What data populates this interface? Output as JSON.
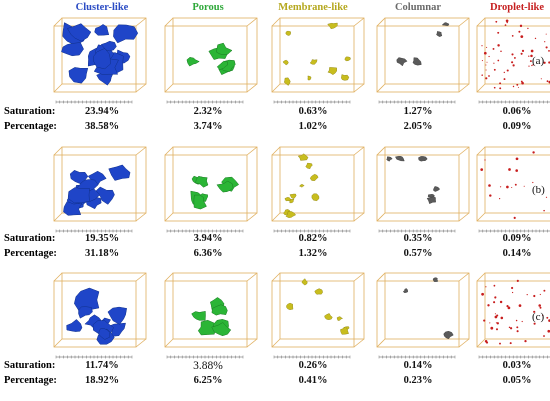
{
  "headers": [
    {
      "label": "Cluster-like",
      "color": "#2a4bc4"
    },
    {
      "label": "Porous",
      "color": "#2fa83a"
    },
    {
      "label": "Membrane-like",
      "color": "#b5a81f"
    },
    {
      "label": "Columnar",
      "color": "#6b6b6b"
    },
    {
      "label": "Droplet-like",
      "color": "#c62020"
    }
  ],
  "row_labels": {
    "saturation": "Saturation:",
    "percentage": "Percentage:"
  },
  "panels": [
    {
      "letter": "(a)",
      "saturation": [
        "23.94%",
        "2.32%",
        "0.63%",
        "1.27%",
        "0.06%"
      ],
      "percentage": [
        "38.58%",
        "3.74%",
        "1.02%",
        "2.05%",
        "0.09%"
      ]
    },
    {
      "letter": "(b)",
      "saturation": [
        "19.35%",
        "3.94%",
        "0.82%",
        "0.35%",
        "0.09%"
      ],
      "percentage": [
        "31.18%",
        "6.36%",
        "1.32%",
        "0.57%",
        "0.14%"
      ]
    },
    {
      "letter": "(c)",
      "saturation": [
        "11.74%",
        "3.88%",
        "0.26%",
        "0.14%",
        "0.03%"
      ],
      "percentage": [
        "18.92%",
        "6.25%",
        "0.41%",
        "0.23%",
        "0.05%"
      ]
    }
  ],
  "box_color": "#e0b060",
  "phase_colors": [
    "#1f45c8",
    "#2bb536",
    "#c8bd1e",
    "#5a5a5a",
    "#c81e1e"
  ]
}
